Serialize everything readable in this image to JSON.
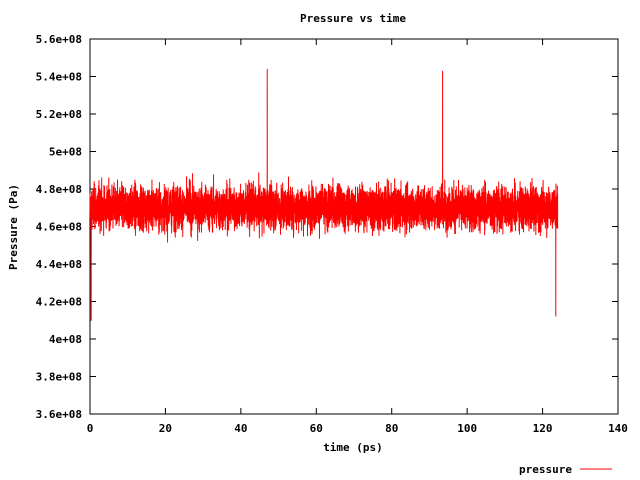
{
  "chart_data": {
    "type": "line",
    "title": "Pressure vs time",
    "xlabel": "time (ps)",
    "ylabel": "Pressure (Pa)",
    "xlim": [
      0,
      140
    ],
    "ylim": [
      360000000.0,
      560000000.0
    ],
    "x_ticks": [
      "0",
      "20",
      "40",
      "60",
      "80",
      "100",
      "120",
      "140"
    ],
    "y_ticks": [
      "3.6e+08",
      "3.8e+08",
      "4e+08",
      "4.2e+08",
      "4.4e+08",
      "4.6e+08",
      "4.8e+08",
      "5e+08",
      "5.2e+08",
      "5.4e+08",
      "5.6e+08"
    ],
    "grid": false,
    "legend_position": "bottom-right",
    "series": [
      {
        "name": "pressure",
        "color": "#ff0000",
        "x_range": [
          0,
          124
        ],
        "mean": 470000000.0,
        "typical_range": [
          430000000.0,
          510000000.0
        ],
        "min": 410000000.0,
        "max": 544000000.0,
        "peaks": [
          {
            "x": 0.3,
            "y": 410000000.0
          },
          {
            "x": 47,
            "y": 544000000.0
          },
          {
            "x": 93.5,
            "y": 543000000.0
          },
          {
            "x": 123.5,
            "y": 412000000.0
          }
        ]
      }
    ]
  }
}
